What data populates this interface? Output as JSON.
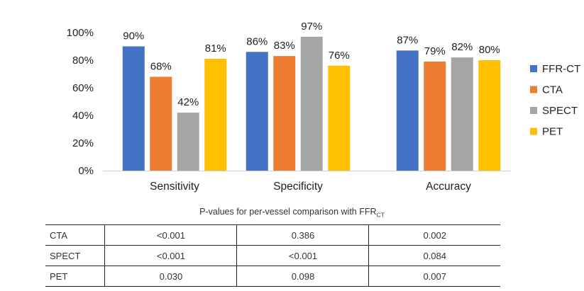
{
  "chart_data": {
    "type": "bar",
    "categories": [
      "Sensitivity",
      "Specificity",
      "Accuracy"
    ],
    "series": [
      {
        "name": "FFR-CT",
        "values": [
          90,
          86,
          87
        ],
        "labels": [
          "90%",
          "86%",
          "87%"
        ],
        "color": "#4472C4"
      },
      {
        "name": "CTA",
        "values": [
          68,
          83,
          79
        ],
        "labels": [
          "68%",
          "83%",
          "79%"
        ],
        "color": "#ED7D31"
      },
      {
        "name": "SPECT",
        "values": [
          42,
          97,
          82
        ],
        "labels": [
          "42%",
          "97%",
          "82%"
        ],
        "color": "#A5A5A5"
      },
      {
        "name": "PET",
        "values": [
          81,
          76,
          80
        ],
        "labels": [
          "81%",
          "76%",
          "80%"
        ],
        "color": "#FFC000"
      }
    ],
    "ylim": [
      0,
      100
    ],
    "yticks": [
      "0%",
      "20%",
      "40%",
      "60%",
      "80%",
      "100%"
    ],
    "grid": false,
    "legend_position": "right",
    "title": "",
    "xlabel": "",
    "ylabel": ""
  },
  "pvalue_table": {
    "title_prefix": "P-values for per-vessel comparison with FFR",
    "title_subscript": "CT",
    "rows": [
      {
        "label": "CTA",
        "values": [
          "<0.001",
          "0.386",
          "0.002"
        ]
      },
      {
        "label": "SPECT",
        "values": [
          "<0.001",
          "<0.001",
          "0.084"
        ]
      },
      {
        "label": "PET",
        "values": [
          "0.030",
          "0.098",
          "0.007"
        ]
      }
    ]
  }
}
